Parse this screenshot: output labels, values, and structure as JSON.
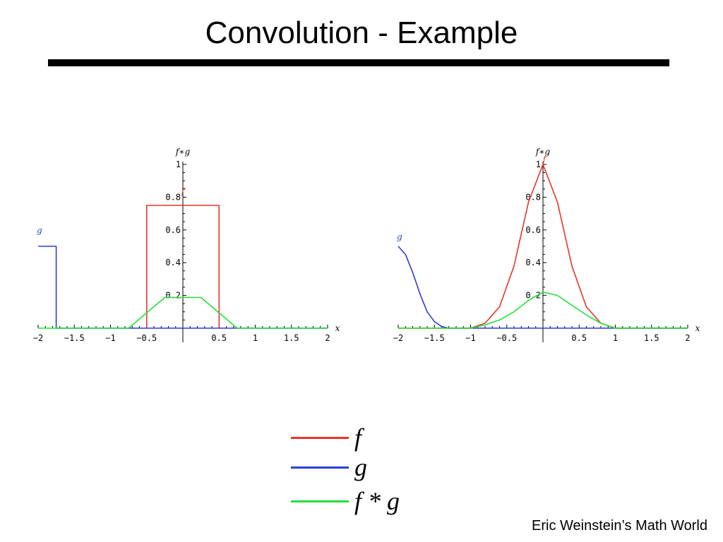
{
  "slide": {
    "title": "Convolution - Example",
    "credit": "Eric Weinstein’s Math World"
  },
  "legend": [
    {
      "label": "f",
      "color": "#e8352a"
    },
    {
      "label": "g",
      "color": "#2b3ed6"
    },
    {
      "label": "f * g",
      "color": "#23e03a"
    }
  ],
  "chart_data": [
    {
      "type": "line",
      "axis_label": "f∗g",
      "x_axis_label": "x",
      "xlim": [
        -2,
        2
      ],
      "ylim": [
        0,
        1
      ],
      "xticks": [
        "−2",
        "−1.5",
        "−1",
        "−0.5",
        "0.5",
        "1",
        "1.5",
        "2"
      ],
      "yticks": [
        "0.2",
        "0.4",
        "0.6",
        "0.8",
        "1"
      ],
      "series": [
        {
          "name": "f",
          "color": "#e8352a",
          "x": [
            -0.5,
            -0.5,
            0.5,
            0.5
          ],
          "y": [
            0,
            0.75,
            0.75,
            0
          ]
        },
        {
          "name": "g",
          "color": "#2b3ed6",
          "x": [
            -2,
            -1.75,
            -1.75,
            2
          ],
          "y": [
            0.5,
            0.5,
            0,
            0
          ]
        },
        {
          "name": "f∗g",
          "color": "#23e03a",
          "x": [
            -2,
            -0.75,
            -0.25,
            0.25,
            0.75,
            2
          ],
          "y": [
            0,
            0,
            0.1875,
            0.1875,
            0,
            0
          ]
        }
      ]
    },
    {
      "type": "line",
      "axis_label": "f∗g",
      "x_axis_label": "x",
      "xlim": [
        -2,
        2
      ],
      "ylim": [
        0,
        1
      ],
      "xticks": [
        "−2",
        "−1.5",
        "−1",
        "−0.5",
        "0.5",
        "1",
        "1.5",
        "2"
      ],
      "yticks": [
        "0.2",
        "0.4",
        "0.6",
        "0.8",
        "1"
      ],
      "series": [
        {
          "name": "f",
          "color": "#e8352a",
          "x": [
            -2,
            -1.0,
            -0.8,
            -0.6,
            -0.4,
            -0.2,
            0,
            0.2,
            0.4,
            0.6,
            0.8,
            1.0,
            2
          ],
          "y": [
            0,
            0,
            0.03,
            0.13,
            0.38,
            0.77,
            1.0,
            0.77,
            0.38,
            0.13,
            0.03,
            0,
            0
          ]
        },
        {
          "name": "g",
          "color": "#2b3ed6",
          "x": [
            -2,
            -1.9,
            -1.8,
            -1.7,
            -1.6,
            -1.5,
            -1.4,
            -1.3,
            2
          ],
          "y": [
            0.5,
            0.45,
            0.34,
            0.21,
            0.1,
            0.04,
            0.01,
            0,
            0
          ]
        },
        {
          "name": "f∗g",
          "color": "#23e03a",
          "x": [
            -2,
            -1.0,
            -0.8,
            -0.6,
            -0.4,
            -0.2,
            0,
            0.2,
            0.4,
            0.6,
            0.8,
            1.0,
            2
          ],
          "y": [
            0,
            0,
            0.02,
            0.05,
            0.1,
            0.17,
            0.22,
            0.2,
            0.14,
            0.08,
            0.03,
            0,
            0
          ]
        }
      ]
    }
  ]
}
